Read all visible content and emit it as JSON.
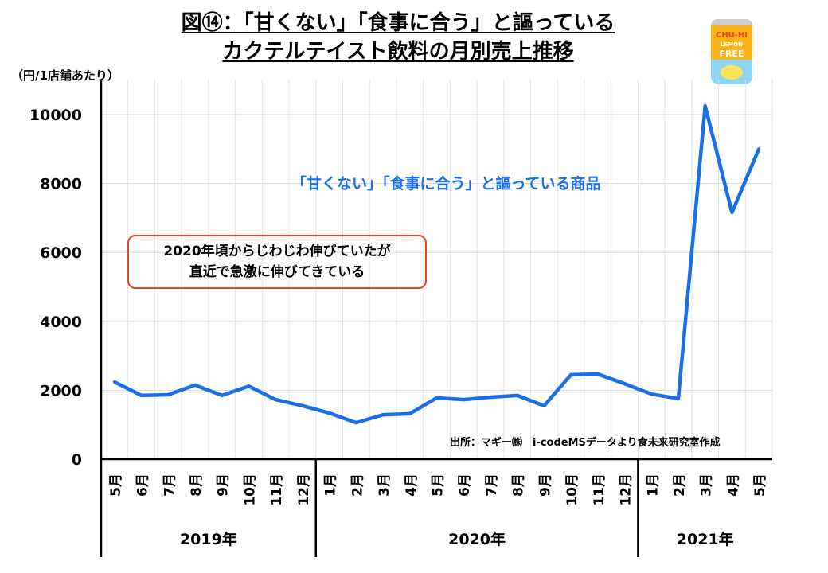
{
  "title": {
    "line1": "図⑭：「甘くない」「食事に合う」と謳っている",
    "line2": "カクテルテイスト飲料の月別売上推移"
  },
  "icon": {
    "name": "chu-hi-can-icon",
    "text": [
      "CHU-HI",
      "LEMON",
      "FREE"
    ]
  },
  "annotations": {
    "series_label": "「甘くない」「食事に合う」と謳っている商品",
    "callout_line1": "2020年頃からじわじわ伸びていたが",
    "callout_line2": "直近で急激に伸びてきている",
    "source": "出所：マギー㈱　i-codeMSデータより食未来研究室作成"
  },
  "colors": {
    "line": "#1a6fe6",
    "callout_border": "#e8461f",
    "grid": "#d9d9d9"
  },
  "chart_data": {
    "type": "line",
    "title": "図⑭：「甘くない」「食事に合う」と謳っているカクテルテイスト飲料の月別売上推移",
    "ylabel": "（円/1店舗あたり）",
    "xlabel": "",
    "ylim": [
      0,
      10000
    ],
    "yticks": [
      0,
      2000,
      4000,
      6000,
      8000,
      10000
    ],
    "grid": true,
    "categories": [
      "5月",
      "6月",
      "7月",
      "8月",
      "9月",
      "10月",
      "11月",
      "12月",
      "1月",
      "2月",
      "3月",
      "4月",
      "5月",
      "6月",
      "7月",
      "8月",
      "9月",
      "10月",
      "11月",
      "12月",
      "1月",
      "2月",
      "3月",
      "4月",
      "5月"
    ],
    "years": [
      {
        "label": "2019年",
        "count": 8
      },
      {
        "label": "2020年",
        "count": 12
      },
      {
        "label": "2021年",
        "count": 5
      }
    ],
    "series": [
      {
        "name": "「甘くない」「食事に合う」と謳っている商品",
        "values": [
          2240,
          1850,
          1870,
          2150,
          1850,
          2120,
          1730,
          1550,
          1340,
          1060,
          1290,
          1320,
          1780,
          1730,
          1800,
          1850,
          1550,
          2450,
          2470,
          2190,
          1890,
          1760,
          10250,
          7160,
          9000
        ]
      }
    ]
  }
}
